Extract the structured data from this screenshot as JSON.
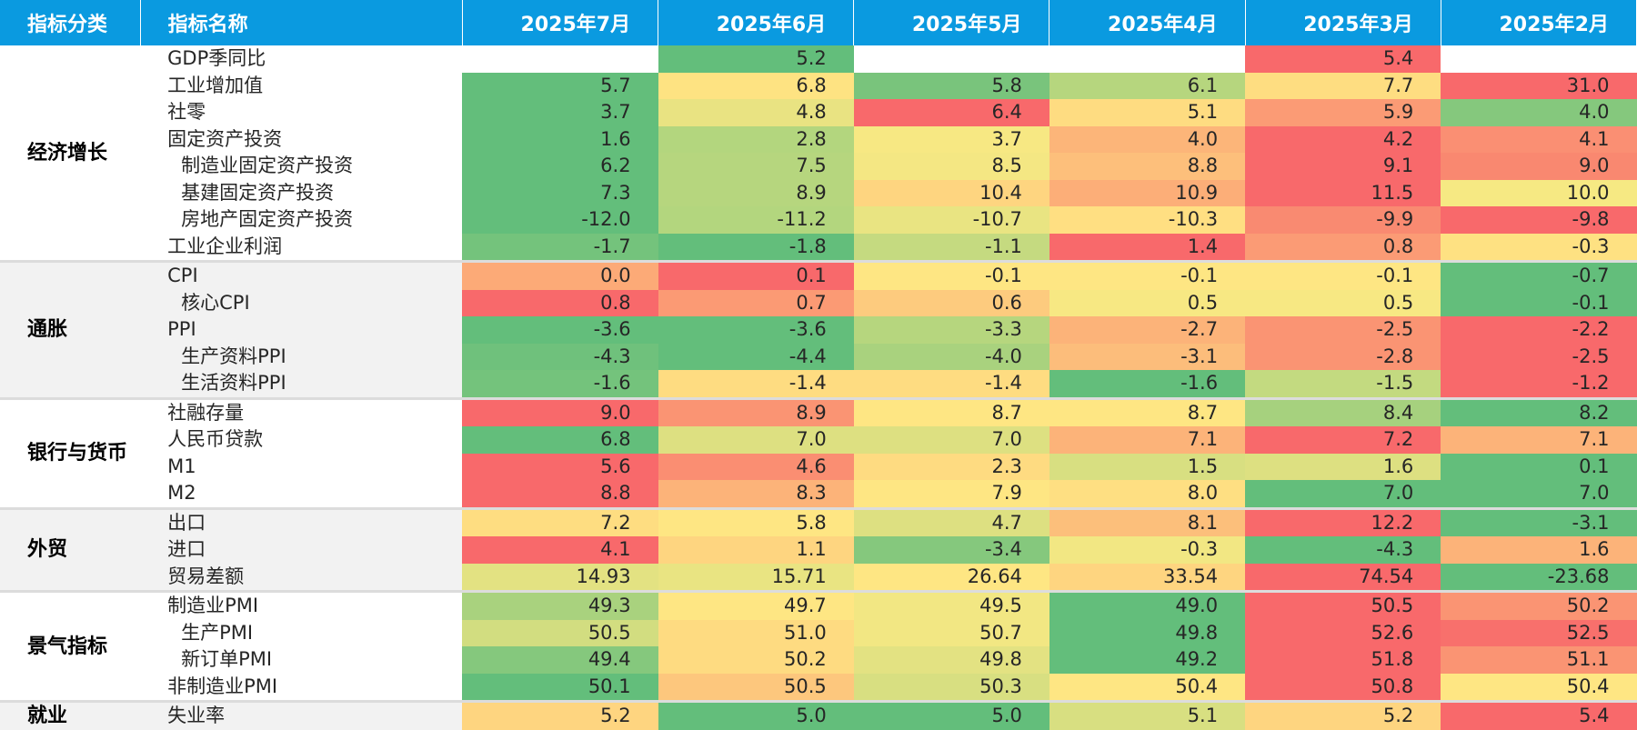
{
  "chart_data": {
    "type": "table",
    "columns": [
      "指标分类",
      "指标名称",
      "2025年7月",
      "2025年6月",
      "2025年5月",
      "2025年4月",
      "2025年3月",
      "2025年2月"
    ],
    "groups": [
      {
        "category": "经济增长",
        "rows": [
          {
            "name": "GDP季同比",
            "sub": false,
            "values": [
              "",
              "5.2",
              "",
              "",
              "5.4",
              ""
            ],
            "colors": [
              "#ffffff",
              "#63be7b",
              "#ffffff",
              "#ffffff",
              "#f8696b",
              "#ffffff"
            ]
          },
          {
            "name": "工业增加值",
            "sub": false,
            "values": [
              "5.7",
              "6.8",
              "5.8",
              "6.1",
              "7.7",
              "31.0"
            ],
            "colors": [
              "#63be7b",
              "#fee382",
              "#79c47c",
              "#b6d67e",
              "#fedd81",
              "#f8696b"
            ]
          },
          {
            "name": "社零",
            "sub": false,
            "values": [
              "3.7",
              "4.8",
              "6.4",
              "5.1",
              "5.9",
              "4.0"
            ],
            "colors": [
              "#63be7b",
              "#e9e382",
              "#f8696b",
              "#fedc81",
              "#fb9b75",
              "#85c87d"
            ]
          },
          {
            "name": "固定资产投资",
            "sub": false,
            "values": [
              "1.6",
              "2.8",
              "3.7",
              "4.0",
              "4.2",
              "4.1"
            ],
            "colors": [
              "#63be7b",
              "#b3d67e",
              "#f7e883",
              "#fcb579",
              "#f8696b",
              "#fa8f73"
            ]
          },
          {
            "name": "制造业固定资产投资",
            "sub": true,
            "values": [
              "6.2",
              "7.5",
              "8.5",
              "8.8",
              "9.1",
              "9.0"
            ],
            "colors": [
              "#63be7b",
              "#b6d67e",
              "#f4e783",
              "#fdbf7b",
              "#f8696b",
              "#f98870"
            ]
          },
          {
            "name": "基建固定资产投资",
            "sub": true,
            "values": [
              "7.3",
              "8.9",
              "10.4",
              "10.9",
              "11.5",
              "10.0"
            ],
            "colors": [
              "#63be7b",
              "#b6d67e",
              "#fed580",
              "#fcae78",
              "#f8696b",
              "#f6e983"
            ]
          },
          {
            "name": "房地产固定资产投资",
            "sub": true,
            "values": [
              "-12.0",
              "-11.2",
              "-10.7",
              "-10.3",
              "-9.9",
              "-9.8"
            ],
            "colors": [
              "#63be7b",
              "#b3d67e",
              "#e9e482",
              "#ffdf82",
              "#f98a71",
              "#f8696b"
            ]
          },
          {
            "name": "工业企业利润",
            "sub": false,
            "values": [
              "-1.7",
              "-1.8",
              "-1.1",
              "1.4",
              "0.8",
              "-0.3"
            ],
            "colors": [
              "#74c37c",
              "#63be7b",
              "#c5da80",
              "#f8696b",
              "#fb9b75",
              "#fee182"
            ]
          }
        ]
      },
      {
        "category": "通胀",
        "rows": [
          {
            "name": "CPI",
            "sub": false,
            "values": [
              "0.0",
              "0.1",
              "-0.1",
              "-0.1",
              "-0.1",
              "-0.7"
            ],
            "colors": [
              "#fcaa77",
              "#f8696b",
              "#fee683",
              "#fee683",
              "#fee683",
              "#63be7b"
            ]
          },
          {
            "name": "核心CPI",
            "sub": true,
            "values": [
              "0.8",
              "0.7",
              "0.6",
              "0.5",
              "0.5",
              "-0.1"
            ],
            "colors": [
              "#f8696b",
              "#fb9a74",
              "#fdcb7e",
              "#f7e883",
              "#f7e883",
              "#63be7b"
            ]
          },
          {
            "name": "PPI",
            "sub": false,
            "values": [
              "-3.6",
              "-3.6",
              "-3.3",
              "-2.7",
              "-2.5",
              "-2.2"
            ],
            "colors": [
              "#63be7b",
              "#63be7b",
              "#b6d67e",
              "#fcb379",
              "#fa9473",
              "#f8696b"
            ]
          },
          {
            "name": "生产资料PPI",
            "sub": true,
            "values": [
              "-4.3",
              "-4.4",
              "-4.0",
              "-3.1",
              "-2.8",
              "-2.5"
            ],
            "colors": [
              "#6fc17c",
              "#63be7b",
              "#a9d27e",
              "#fcbd7b",
              "#fa9473",
              "#f8696b"
            ]
          },
          {
            "name": "生活资料PPI",
            "sub": true,
            "values": [
              "-1.6",
              "-1.4",
              "-1.4",
              "-1.6",
              "-1.5",
              "-1.2"
            ],
            "colors": [
              "#74c37c",
              "#fedc81",
              "#fedc81",
              "#63be7b",
              "#c3da80",
              "#f8696b"
            ]
          }
        ]
      },
      {
        "category": "银行与货币",
        "rows": [
          {
            "name": "社融存量",
            "sub": false,
            "values": [
              "9.0",
              "8.9",
              "8.7",
              "8.7",
              "8.4",
              "8.2"
            ],
            "colors": [
              "#f8696b",
              "#fa9473",
              "#fee683",
              "#fee683",
              "#a6d17e",
              "#63be7b"
            ]
          },
          {
            "name": "人民币贷款",
            "sub": false,
            "values": [
              "6.8",
              "7.0",
              "7.0",
              "7.1",
              "7.2",
              "7.1"
            ],
            "colors": [
              "#63be7b",
              "#dde081",
              "#dde081",
              "#fcb379",
              "#f8696b",
              "#fcb379"
            ]
          },
          {
            "name": "M1",
            "sub": false,
            "values": [
              "5.6",
              "4.6",
              "2.3",
              "1.5",
              "1.6",
              "0.1"
            ],
            "colors": [
              "#f8696b",
              "#fa8e72",
              "#fedb81",
              "#d8df81",
              "#dde081",
              "#63be7b"
            ]
          },
          {
            "name": "M2",
            "sub": false,
            "values": [
              "8.8",
              "8.3",
              "7.9",
              "8.0",
              "7.0",
              "7.0"
            ],
            "colors": [
              "#f8696b",
              "#fcb379",
              "#fee683",
              "#fedf82",
              "#63be7b",
              "#63be7b"
            ]
          }
        ]
      },
      {
        "category": "外贸",
        "rows": [
          {
            "name": "出口",
            "sub": false,
            "values": [
              "7.2",
              "5.8",
              "4.7",
              "8.1",
              "12.2",
              "-3.1"
            ],
            "colors": [
              "#fedd81",
              "#fee683",
              "#dde081",
              "#fcbf7b",
              "#f8696b",
              "#63be7b"
            ]
          },
          {
            "name": "进口",
            "sub": false,
            "values": [
              "4.1",
              "1.1",
              "-3.4",
              "-0.3",
              "-4.3",
              "1.6"
            ],
            "colors": [
              "#f8696b",
              "#fed580",
              "#85c87d",
              "#f2e783",
              "#63be7b",
              "#fcb379"
            ]
          },
          {
            "name": "贸易差额",
            "sub": false,
            "values": [
              "14.93",
              "15.71",
              "26.64",
              "33.54",
              "74.54",
              "-23.68"
            ],
            "colors": [
              "#e3e282",
              "#e9e482",
              "#fee683",
              "#fed580",
              "#f8696b",
              "#63be7b"
            ]
          }
        ]
      },
      {
        "category": "景气指标",
        "rows": [
          {
            "name": "制造业PMI",
            "sub": false,
            "values": [
              "49.3",
              "49.7",
              "49.5",
              "49.0",
              "50.5",
              "50.2"
            ],
            "colors": [
              "#a9d27e",
              "#fee683",
              "#f2e783",
              "#63be7b",
              "#f8696b",
              "#fa9473"
            ]
          },
          {
            "name": "生产PMI",
            "sub": true,
            "values": [
              "50.5",
              "51.0",
              "50.7",
              "49.8",
              "52.6",
              "52.5"
            ],
            "colors": [
              "#d2dd80",
              "#fedb81",
              "#f2e783",
              "#63be7b",
              "#f8696b",
              "#f8706c"
            ]
          },
          {
            "name": "新订单PMI",
            "sub": true,
            "values": [
              "49.4",
              "50.2",
              "49.8",
              "49.2",
              "51.8",
              "51.1"
            ],
            "colors": [
              "#85c87d",
              "#fedb81",
              "#e3e282",
              "#63be7b",
              "#f8696b",
              "#fa9473"
            ]
          },
          {
            "name": "非制造业PMI",
            "sub": false,
            "values": [
              "50.1",
              "50.5",
              "50.3",
              "50.4",
              "50.8",
              "50.4"
            ],
            "colors": [
              "#63be7b",
              "#fdc77d",
              "#d8df81",
              "#fee683",
              "#f8696b",
              "#fee683"
            ]
          }
        ]
      },
      {
        "category": "就业",
        "rows": [
          {
            "name": "失业率",
            "sub": false,
            "values": [
              "5.2",
              "5.0",
              "5.0",
              "5.1",
              "5.2",
              "5.4"
            ],
            "colors": [
              "#fed580",
              "#63be7b",
              "#63be7b",
              "#d8df81",
              "#fed580",
              "#f8696b"
            ]
          }
        ]
      }
    ]
  }
}
